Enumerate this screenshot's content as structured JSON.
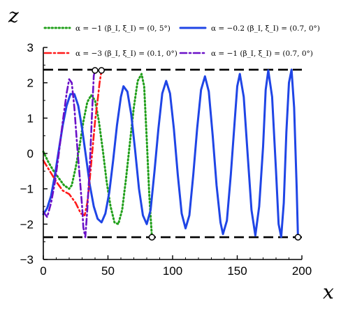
{
  "chart_data": {
    "type": "line",
    "xlabel": "x",
    "ylabel": "z",
    "xlim": [
      0,
      200
    ],
    "ylim": [
      -3,
      3
    ],
    "xticks": [
      0,
      50,
      100,
      150,
      200
    ],
    "yticks": [
      -3,
      -2,
      -1,
      0,
      1,
      2,
      3
    ],
    "legend_position": "top",
    "boundaries": [
      2.37,
      -2.37
    ],
    "series": [
      {
        "name": "α = −1  (β_I, ξ_I) = (0, 5°)",
        "color": "#22a01c",
        "style": "dotted",
        "points": [
          [
            0,
            0.05
          ],
          [
            4,
            -0.25
          ],
          [
            8,
            -0.5
          ],
          [
            12,
            -0.7
          ],
          [
            16,
            -0.9
          ],
          [
            20,
            -1.0
          ],
          [
            22,
            -0.9
          ],
          [
            25,
            -0.4
          ],
          [
            28,
            0.2
          ],
          [
            31,
            0.9
          ],
          [
            34,
            1.45
          ],
          [
            37,
            1.65
          ],
          [
            40,
            1.5
          ],
          [
            43,
            0.9
          ],
          [
            46,
            0.1
          ],
          [
            49,
            -0.8
          ],
          [
            52,
            -1.5
          ],
          [
            55,
            -1.95
          ],
          [
            58,
            -2.0
          ],
          [
            61,
            -1.6
          ],
          [
            64,
            -0.7
          ],
          [
            67,
            0.3
          ],
          [
            70,
            1.3
          ],
          [
            73,
            2.05
          ],
          [
            76,
            2.25
          ],
          [
            78,
            1.9
          ],
          [
            80,
            0.4
          ],
          [
            82,
            -1.2
          ],
          [
            84,
            -2.37
          ]
        ],
        "end_marker": [
          84,
          -2.37
        ]
      },
      {
        "name": "α = −0.2  (β_I, ξ_I) = (0.7, 0°)",
        "color": "#1f45e6",
        "style": "solid",
        "points": [
          [
            0,
            -1.72
          ],
          [
            3,
            -1.55
          ],
          [
            6,
            -1.2
          ],
          [
            9,
            -0.6
          ],
          [
            12,
            0.1
          ],
          [
            15,
            0.8
          ],
          [
            18,
            1.35
          ],
          [
            21,
            1.68
          ],
          [
            24,
            1.68
          ],
          [
            27,
            1.35
          ],
          [
            30,
            0.7
          ],
          [
            33,
            -0.1
          ],
          [
            36,
            -0.9
          ],
          [
            39,
            -1.5
          ],
          [
            42,
            -1.85
          ],
          [
            45,
            -1.95
          ],
          [
            48,
            -1.7
          ],
          [
            51,
            -1.1
          ],
          [
            54,
            -0.2
          ],
          [
            57,
            0.8
          ],
          [
            60,
            1.6
          ],
          [
            62,
            1.9
          ],
          [
            65,
            1.75
          ],
          [
            68,
            1.1
          ],
          [
            71,
            0.1
          ],
          [
            74,
            -1.0
          ],
          [
            77,
            -1.75
          ],
          [
            80,
            -2.0
          ],
          [
            83,
            -1.6
          ],
          [
            86,
            -0.5
          ],
          [
            89,
            0.7
          ],
          [
            92,
            1.7
          ],
          [
            95,
            2.05
          ],
          [
            98,
            1.7
          ],
          [
            101,
            0.7
          ],
          [
            104,
            -0.6
          ],
          [
            107,
            -1.7
          ],
          [
            110,
            -2.12
          ],
          [
            113,
            -1.75
          ],
          [
            116,
            -0.6
          ],
          [
            119,
            0.7
          ],
          [
            122,
            1.8
          ],
          [
            125,
            2.18
          ],
          [
            128,
            1.75
          ],
          [
            131,
            0.5
          ],
          [
            134,
            -0.9
          ],
          [
            137,
            -1.95
          ],
          [
            139,
            -2.28
          ],
          [
            142,
            -1.9
          ],
          [
            145,
            -0.6
          ],
          [
            148,
            0.9
          ],
          [
            150,
            1.9
          ],
          [
            152,
            2.25
          ],
          [
            155,
            1.6
          ],
          [
            158,
            0.0
          ],
          [
            161,
            -1.6
          ],
          [
            164,
            -2.32
          ],
          [
            167,
            -1.5
          ],
          [
            170,
            0.2
          ],
          [
            172,
            1.8
          ],
          [
            174,
            2.35
          ],
          [
            177,
            1.6
          ],
          [
            180,
            -0.5
          ],
          [
            182,
            -2.0
          ],
          [
            184,
            -2.36
          ],
          [
            186,
            -1.4
          ],
          [
            188,
            0.6
          ],
          [
            190,
            2.0
          ],
          [
            192,
            2.37
          ],
          [
            194,
            1.3
          ],
          [
            196,
            -1.0
          ],
          [
            197,
            -2.37
          ]
        ],
        "end_marker": [
          197,
          -2.37
        ]
      },
      {
        "name": "α = −3  (β_I, ξ_I) = (0.1, 0°)",
        "color": "#ff1a1a",
        "style": "dashdot",
        "points": [
          [
            0,
            -0.2
          ],
          [
            5,
            -0.5
          ],
          [
            10,
            -0.8
          ],
          [
            15,
            -1.05
          ],
          [
            20,
            -1.15
          ],
          [
            25,
            -1.4
          ],
          [
            29,
            -1.7
          ],
          [
            32,
            -1.75
          ],
          [
            34,
            -1.4
          ],
          [
            36,
            -0.7
          ],
          [
            38,
            0.1
          ],
          [
            40,
            0.9
          ],
          [
            42,
            1.5
          ],
          [
            43.5,
            2.0
          ],
          [
            45,
            2.35
          ]
        ],
        "end_marker": [
          45,
          2.35
        ]
      },
      {
        "name": "α = −1  (β_I, ξ_I) = (0.7, 0°)",
        "color": "#6a10c8",
        "style": "dashdot",
        "points": [
          [
            0,
            -1.65
          ],
          [
            3,
            -1.8
          ],
          [
            6,
            -1.4
          ],
          [
            9,
            -0.8
          ],
          [
            12,
            0.0
          ],
          [
            15,
            0.9
          ],
          [
            18,
            1.7
          ],
          [
            20,
            2.1
          ],
          [
            22,
            2.0
          ],
          [
            24,
            1.3
          ],
          [
            26,
            0.3
          ],
          [
            28,
            -0.6
          ],
          [
            30,
            -1.5
          ],
          [
            31,
            -2.1
          ],
          [
            32.5,
            -2.37
          ],
          [
            34,
            -1.6
          ],
          [
            36,
            -0.3
          ],
          [
            37.5,
            1.0
          ],
          [
            39,
            2.2
          ],
          [
            40,
            2.35
          ]
        ],
        "end_marker": [
          40,
          2.35
        ]
      }
    ]
  }
}
